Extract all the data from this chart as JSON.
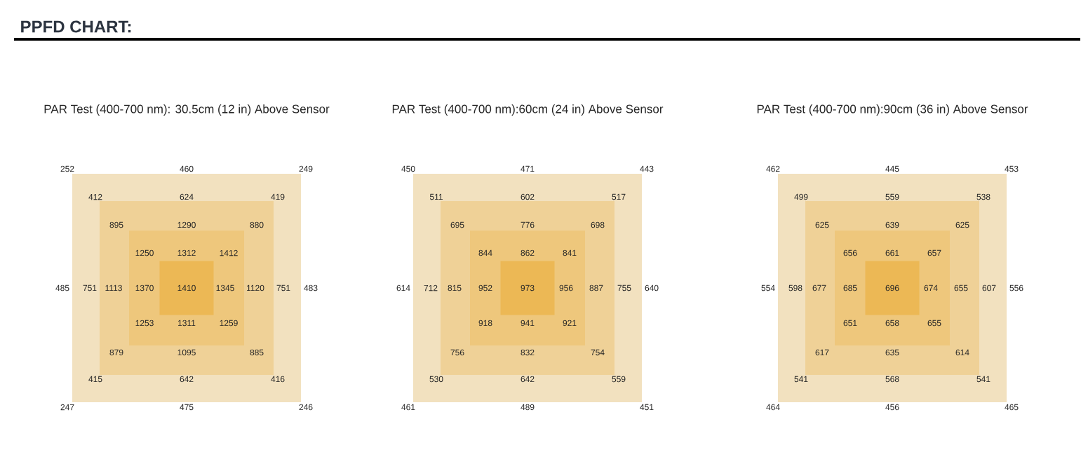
{
  "chart_data": [
    {
      "type": "other",
      "data_labels": true,
      "annotations": [
        "PPFD CHART:"
      ],
      "subtitle": "PAR Test (400-700 nm): 30.5cm (12 in) Above Sensor",
      "values": [
        252,
        460,
        249,
        412,
        624,
        419,
        895,
        1290,
        880,
        1250,
        1312,
        1412,
        485,
        751,
        1113,
        1370,
        1410,
        1345,
        1120,
        751,
        483,
        1253,
        1311,
        1259,
        879,
        1095,
        885,
        415,
        642,
        416,
        247,
        475,
        246
      ]
    },
    {
      "type": "other",
      "data_labels": true,
      "subtitle": "PAR Test (400-700 nm):60cm (24 in) Above Sensor",
      "values": [
        450,
        471,
        443,
        511,
        602,
        517,
        695,
        776,
        698,
        844,
        862,
        841,
        614,
        712,
        815,
        952,
        973,
        956,
        887,
        755,
        640,
        918,
        941,
        921,
        756,
        832,
        754,
        530,
        642,
        559,
        461,
        489,
        451
      ]
    },
    {
      "type": "other",
      "data_labels": true,
      "subtitle": "PAR Test (400-700 nm):90cm (36 in) Above Sensor",
      "values": [
        462,
        445,
        453,
        499,
        559,
        538,
        625,
        639,
        625,
        656,
        661,
        657,
        554,
        598,
        677,
        685,
        696,
        674,
        655,
        607,
        556,
        651,
        658,
        655,
        617,
        635,
        614,
        541,
        568,
        541,
        464,
        456,
        465
      ]
    }
  ]
}
